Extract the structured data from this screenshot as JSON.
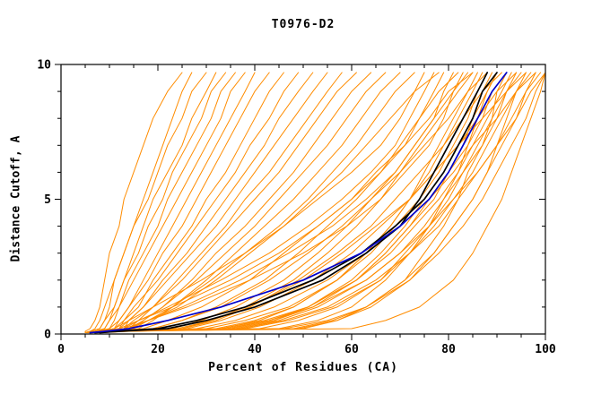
{
  "chart_data": {
    "type": "line",
    "title": "T0976-D2",
    "xlabel": "Percent of Residues (CA)",
    "ylabel": "Distance Cutoff, A",
    "xlim": [
      0,
      100
    ],
    "ylim": [
      0,
      10
    ],
    "x_ticks": [
      0,
      20,
      40,
      60,
      80,
      100
    ],
    "x_minor_step": 5,
    "y_ticks": [
      0,
      5,
      10
    ],
    "y_minor_step": 1,
    "grid": false,
    "legend": "none",
    "colors": {
      "ensemble": "#ff8c00",
      "best_model": "#0000cc",
      "reference": "#000000",
      "axis": "#000000",
      "background": "#ffffff"
    },
    "y_nodes": [
      0.05,
      0.1,
      0.2,
      0.5,
      1,
      2,
      3,
      4,
      5,
      6,
      7,
      8,
      9,
      9.7
    ],
    "ensemble_series": [
      [
        5,
        5,
        6,
        7,
        8,
        9,
        10,
        12,
        13,
        15,
        17,
        19,
        22,
        25
      ],
      [
        5,
        6,
        8,
        9,
        10,
        11,
        13,
        15,
        17,
        19,
        21,
        23,
        25,
        27
      ],
      [
        5,
        6,
        7,
        8,
        9,
        11,
        13,
        15,
        18,
        20,
        22,
        25,
        27,
        30
      ],
      [
        6,
        7,
        9,
        10,
        11,
        13,
        15,
        17,
        19,
        22,
        25,
        27,
        30,
        32
      ],
      [
        5,
        6,
        8,
        9,
        11,
        13,
        16,
        18,
        21,
        23,
        26,
        29,
        31,
        34
      ],
      [
        6,
        8,
        10,
        11,
        12,
        14,
        17,
        20,
        22,
        25,
        28,
        31,
        33,
        36
      ],
      [
        5,
        7,
        9,
        10,
        12,
        15,
        18,
        21,
        24,
        27,
        30,
        33,
        35,
        38
      ],
      [
        6,
        8,
        11,
        12,
        14,
        17,
        20,
        23,
        26,
        29,
        32,
        35,
        38,
        40
      ],
      [
        5,
        7,
        10,
        12,
        14,
        18,
        21,
        25,
        28,
        31,
        34,
        37,
        40,
        43
      ],
      [
        6,
        9,
        12,
        13,
        16,
        19,
        23,
        27,
        30,
        34,
        37,
        40,
        43,
        46
      ],
      [
        5,
        8,
        11,
        13,
        15,
        20,
        24,
        28,
        32,
        36,
        39,
        43,
        46,
        49
      ],
      [
        6,
        9,
        13,
        14,
        17,
        21,
        26,
        30,
        34,
        38,
        42,
        45,
        49,
        52
      ],
      [
        5,
        8,
        12,
        14,
        17,
        22,
        27,
        32,
        36,
        40,
        44,
        48,
        52,
        55
      ],
      [
        7,
        10,
        14,
        16,
        19,
        24,
        29,
        34,
        38,
        43,
        47,
        51,
        55,
        58
      ],
      [
        6,
        9,
        13,
        15,
        19,
        25,
        30,
        35,
        40,
        45,
        49,
        53,
        57,
        61
      ],
      [
        7,
        10,
        15,
        17,
        21,
        27,
        32,
        38,
        43,
        48,
        52,
        56,
        60,
        64
      ],
      [
        6,
        9,
        14,
        17,
        21,
        28,
        34,
        40,
        45,
        50,
        55,
        59,
        63,
        67
      ],
      [
        7,
        11,
        16,
        19,
        23,
        30,
        36,
        42,
        48,
        53,
        58,
        62,
        66,
        70
      ],
      [
        6,
        10,
        15,
        18,
        23,
        31,
        38,
        45,
        51,
        56,
        61,
        65,
        69,
        73
      ],
      [
        5,
        8,
        11,
        14,
        19,
        29,
        38,
        46,
        53,
        60,
        66,
        70,
        73,
        75
      ],
      [
        6,
        9,
        13,
        16,
        22,
        33,
        43,
        51,
        58,
        64,
        69,
        72,
        75,
        77
      ],
      [
        5,
        8,
        12,
        16,
        23,
        35,
        45,
        53,
        60,
        66,
        71,
        74,
        77,
        79
      ],
      [
        6,
        9,
        14,
        18,
        25,
        37,
        47,
        56,
        63,
        69,
        73,
        77,
        79,
        81
      ],
      [
        5,
        8,
        13,
        18,
        26,
        39,
        50,
        59,
        66,
        71,
        76,
        79,
        81,
        83
      ],
      [
        6,
        10,
        23,
        29,
        36,
        46,
        53,
        59,
        64,
        69,
        73,
        77,
        81,
        84
      ],
      [
        7,
        12,
        25,
        31,
        38,
        48,
        55,
        61,
        66,
        70,
        74,
        78,
        82,
        85
      ],
      [
        6,
        10,
        33,
        41,
        48,
        57,
        63,
        68,
        72,
        75,
        78,
        81,
        84,
        86
      ],
      [
        5,
        9,
        32,
        40,
        48,
        57,
        63,
        68,
        72,
        76,
        79,
        82,
        85,
        87
      ],
      [
        6,
        11,
        30,
        38,
        47,
        57,
        64,
        69,
        74,
        78,
        81,
        84,
        86,
        88
      ],
      [
        7,
        12,
        36,
        44,
        52,
        61,
        67,
        72,
        76,
        80,
        83,
        85,
        87,
        89
      ],
      [
        6,
        12,
        36,
        44,
        51,
        60,
        66,
        71,
        75,
        79,
        82,
        85,
        88,
        90
      ],
      [
        5,
        10,
        45,
        53,
        60,
        67,
        72,
        76,
        79,
        82,
        84,
        86,
        88,
        90
      ],
      [
        6,
        10,
        24,
        31,
        39,
        49,
        57,
        64,
        69,
        74,
        79,
        83,
        87,
        91
      ],
      [
        7,
        11,
        35,
        43,
        51,
        61,
        67,
        72,
        77,
        80,
        84,
        87,
        89,
        92
      ],
      [
        8,
        14,
        50,
        57,
        63,
        71,
        75,
        79,
        82,
        84,
        87,
        89,
        90,
        92
      ],
      [
        6,
        9,
        33,
        42,
        51,
        61,
        68,
        73,
        78,
        82,
        85,
        88,
        91,
        93
      ],
      [
        7,
        12,
        26,
        33,
        41,
        52,
        60,
        66,
        72,
        77,
        82,
        86,
        90,
        94
      ],
      [
        6,
        10,
        41,
        49,
        57,
        66,
        71,
        76,
        80,
        83,
        86,
        89,
        92,
        94
      ],
      [
        7,
        11,
        37,
        45,
        53,
        63,
        70,
        75,
        79,
        83,
        87,
        90,
        92,
        95
      ],
      [
        8,
        13,
        25,
        32,
        39,
        50,
        58,
        65,
        72,
        77,
        82,
        87,
        92,
        96
      ],
      [
        5,
        9,
        49,
        57,
        64,
        72,
        77,
        81,
        85,
        88,
        90,
        92,
        94,
        96
      ],
      [
        6,
        10,
        38,
        47,
        56,
        66,
        72,
        77,
        81,
        85,
        88,
        91,
        94,
        97
      ],
      [
        8,
        14,
        28,
        36,
        44,
        55,
        63,
        70,
        76,
        81,
        85,
        90,
        94,
        98
      ],
      [
        7,
        12,
        48,
        56,
        63,
        71,
        77,
        81,
        85,
        88,
        91,
        94,
        96,
        98
      ],
      [
        6,
        10,
        37,
        46,
        55,
        65,
        72,
        78,
        82,
        86,
        90,
        93,
        96,
        99
      ],
      [
        7,
        12,
        34,
        43,
        52,
        63,
        70,
        76,
        81,
        86,
        90,
        94,
        97,
        100
      ],
      [
        5,
        8,
        46,
        55,
        63,
        72,
        78,
        83,
        87,
        90,
        93,
        96,
        98,
        100
      ],
      [
        6,
        10,
        60,
        67,
        74,
        81,
        85,
        88,
        91,
        93,
        95,
        97,
        99,
        100
      ],
      [
        6,
        10,
        17,
        22,
        29,
        39,
        46,
        53,
        60,
        65,
        71,
        76,
        80,
        85
      ],
      [
        7,
        11,
        19,
        25,
        33,
        43,
        51,
        58,
        64,
        70,
        75,
        80,
        84,
        88
      ],
      [
        5,
        9,
        19,
        25,
        32,
        42,
        49,
        55,
        61,
        66,
        70,
        74,
        78,
        82
      ],
      [
        6,
        10,
        14,
        18,
        24,
        32,
        39,
        46,
        52,
        58,
        63,
        68,
        73,
        78
      ]
    ],
    "highlight_series": [
      {
        "name": "reference-line-1",
        "color": "#000000",
        "x": [
          7,
          11,
          20,
          28,
          38,
          52,
          62,
          69,
          75,
          79,
          82,
          85,
          87,
          90
        ]
      },
      {
        "name": "reference-line-2",
        "color": "#000000",
        "x": [
          8,
          12,
          22,
          30,
          40,
          54,
          63,
          70,
          74,
          77,
          80,
          83,
          86,
          88
        ]
      },
      {
        "name": "best-model-line",
        "color": "#0000cc",
        "x": [
          6,
          9,
          14,
          22,
          33,
          50,
          62,
          70,
          76,
          80,
          83,
          86,
          89,
          92
        ]
      }
    ]
  }
}
